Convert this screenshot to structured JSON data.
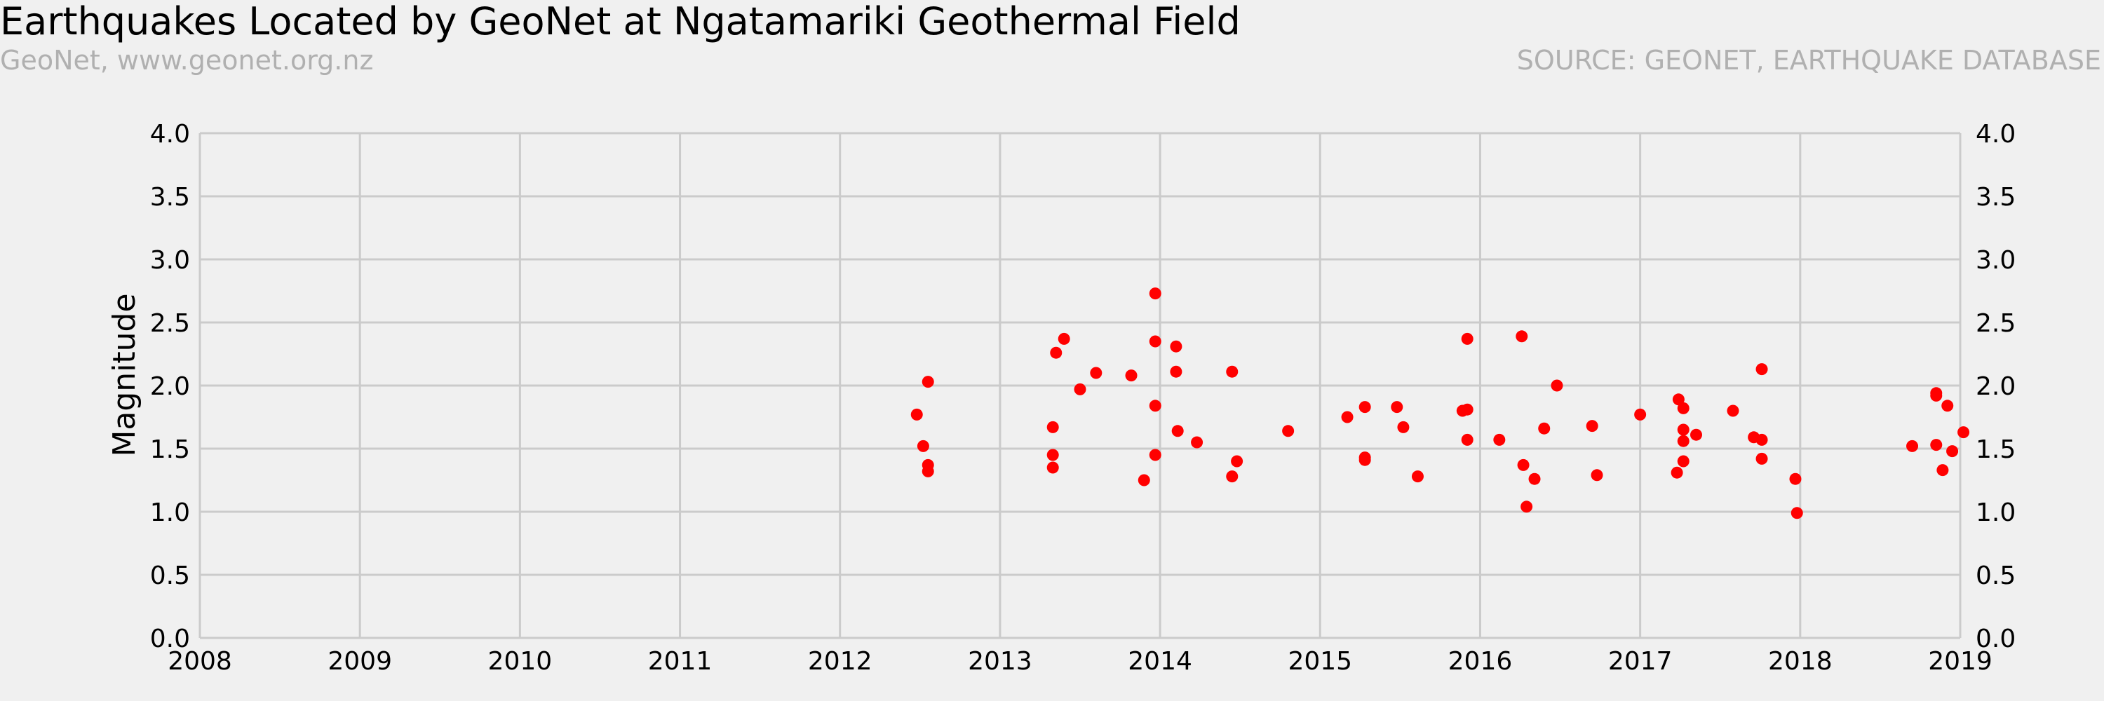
{
  "chart_data": {
    "type": "scatter",
    "title": "Earthquakes Located by GeoNet at Ngatamariki Geothermal Field",
    "subtitle": "GeoNet, www.geonet.org.nz",
    "source": "SOURCE: GEONET, EARTHQUAKE DATABASE",
    "xlabel": "",
    "ylabel": "Magnitude",
    "xlim": [
      2008,
      2019
    ],
    "ylim": [
      0.0,
      4.0
    ],
    "x_ticks": [
      "2008",
      "2009",
      "2010",
      "2011",
      "2012",
      "2013",
      "2014",
      "2015",
      "2016",
      "2017",
      "2018",
      "2019"
    ],
    "y_ticks": [
      "0.0",
      "0.5",
      "1.0",
      "1.5",
      "2.0",
      "2.5",
      "3.0",
      "3.5",
      "4.0"
    ],
    "grid": true,
    "point_color": "#ff0000",
    "series": [
      {
        "points": [
          [
            2012.48,
            1.77
          ],
          [
            2012.52,
            1.52
          ],
          [
            2012.55,
            2.03
          ],
          [
            2012.55,
            1.37
          ],
          [
            2012.55,
            1.32
          ],
          [
            2013.33,
            1.67
          ],
          [
            2013.33,
            1.45
          ],
          [
            2013.33,
            1.35
          ],
          [
            2013.35,
            2.26
          ],
          [
            2013.4,
            2.37
          ],
          [
            2013.5,
            1.97
          ],
          [
            2013.6,
            2.1
          ],
          [
            2013.82,
            2.08
          ],
          [
            2013.9,
            1.25
          ],
          [
            2013.97,
            2.73
          ],
          [
            2013.97,
            2.35
          ],
          [
            2013.97,
            1.84
          ],
          [
            2013.97,
            1.45
          ],
          [
            2014.1,
            2.31
          ],
          [
            2014.1,
            2.11
          ],
          [
            2014.11,
            1.64
          ],
          [
            2014.23,
            1.55
          ],
          [
            2014.45,
            2.11
          ],
          [
            2014.45,
            1.28
          ],
          [
            2014.48,
            1.4
          ],
          [
            2014.8,
            1.64
          ],
          [
            2015.17,
            1.75
          ],
          [
            2015.28,
            1.83
          ],
          [
            2015.28,
            1.43
          ],
          [
            2015.28,
            1.41
          ],
          [
            2015.48,
            1.83
          ],
          [
            2015.52,
            1.67
          ],
          [
            2015.61,
            1.28
          ],
          [
            2015.89,
            1.8
          ],
          [
            2015.92,
            1.81
          ],
          [
            2015.92,
            2.37
          ],
          [
            2015.92,
            1.57
          ],
          [
            2016.12,
            1.57
          ],
          [
            2016.26,
            2.39
          ],
          [
            2016.27,
            1.37
          ],
          [
            2016.29,
            1.04
          ],
          [
            2016.34,
            1.26
          ],
          [
            2016.4,
            1.66
          ],
          [
            2016.48,
            2.0
          ],
          [
            2016.7,
            1.68
          ],
          [
            2016.73,
            1.29
          ],
          [
            2017.0,
            1.77
          ],
          [
            2017.23,
            1.31
          ],
          [
            2017.24,
            1.89
          ],
          [
            2017.27,
            1.82
          ],
          [
            2017.27,
            1.65
          ],
          [
            2017.27,
            1.56
          ],
          [
            2017.27,
            1.4
          ],
          [
            2017.35,
            1.61
          ],
          [
            2017.58,
            1.8
          ],
          [
            2017.71,
            1.59
          ],
          [
            2017.76,
            2.13
          ],
          [
            2017.76,
            1.57
          ],
          [
            2017.76,
            1.42
          ],
          [
            2017.97,
            1.26
          ],
          [
            2017.98,
            0.99
          ],
          [
            2018.7,
            1.52
          ],
          [
            2018.85,
            1.94
          ],
          [
            2018.85,
            1.92
          ],
          [
            2018.85,
            1.53
          ],
          [
            2018.89,
            1.33
          ],
          [
            2018.92,
            1.84
          ],
          [
            2018.95,
            1.48
          ],
          [
            2019.02,
            1.63
          ]
        ]
      }
    ]
  }
}
